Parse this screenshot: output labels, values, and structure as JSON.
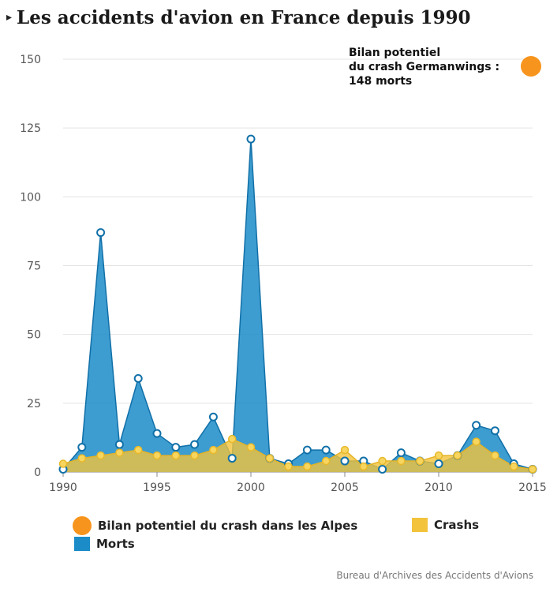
{
  "header": {
    "arrow": "▸",
    "title": "Les accidents d'avion en France depuis 1990"
  },
  "chart_data": {
    "type": "area",
    "x": [
      1990,
      1991,
      1992,
      1993,
      1994,
      1995,
      1996,
      1997,
      1998,
      1999,
      2000,
      2001,
      2002,
      2003,
      2004,
      2005,
      2006,
      2007,
      2008,
      2009,
      2010,
      2011,
      2012,
      2013,
      2014,
      2015
    ],
    "series": [
      {
        "name": "Morts",
        "color": "#1b8cc8",
        "values": [
          1,
          9,
          87,
          10,
          34,
          14,
          9,
          10,
          20,
          5,
          121,
          5,
          3,
          8,
          8,
          4,
          4,
          1,
          7,
          4,
          3,
          6,
          17,
          15,
          3,
          1
        ]
      },
      {
        "name": "Crashs",
        "color": "#f2c33b",
        "values": [
          3,
          5,
          6,
          7,
          8,
          6,
          6,
          6,
          8,
          12,
          9,
          5,
          2,
          2,
          4,
          8,
          2,
          4,
          4,
          4,
          6,
          6,
          11,
          6,
          2,
          1
        ]
      }
    ],
    "highlight": {
      "name": "Bilan potentiel du crash dans les Alpes",
      "x": 2015,
      "value": 148,
      "color": "#f7941d",
      "annotation": [
        "Bilan potentiel",
        "du crash Germanwings :",
        "148 morts"
      ]
    },
    "yticks": [
      0,
      25,
      50,
      75,
      100,
      125,
      150
    ],
    "xticks": [
      1990,
      1995,
      2000,
      2005,
      2010,
      2015
    ],
    "ylim": [
      0,
      150
    ],
    "xlim": [
      1990,
      2015
    ],
    "grid": true,
    "legend_position": "bottom-left"
  },
  "legend": {
    "highlight_label": "Bilan potentiel du crash dans les Alpes",
    "crashs_label": "Crashs",
    "morts_label": "Morts",
    "morts_color": "#1b8cc8",
    "crashs_color": "#f2c33b"
  },
  "source": "Bureau d'Archives des Accidents d'Avions"
}
